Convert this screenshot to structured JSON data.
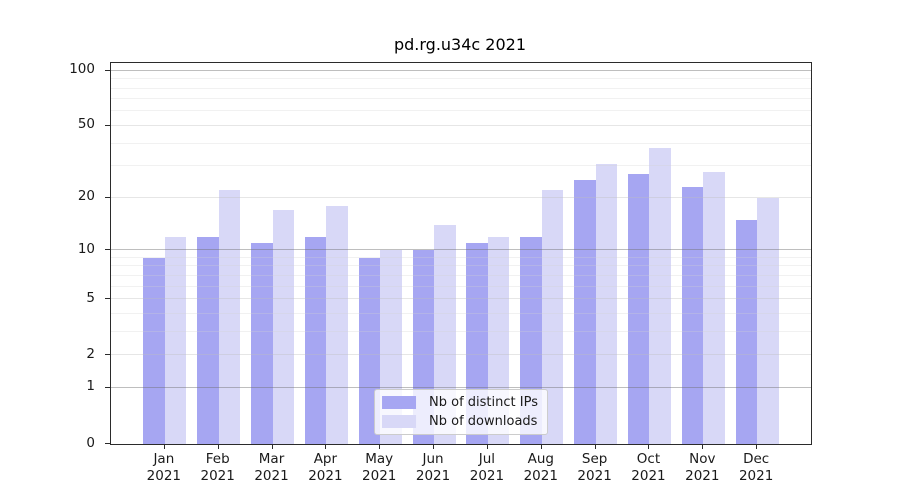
{
  "chart_data": {
    "type": "bar",
    "title": "pd.rg.u34c 2021",
    "xlabel": "",
    "ylabel": "",
    "yscale": "log1p (position proportional to log10(value+1))",
    "ylim": [
      0,
      110
    ],
    "y_ticks": [
      0,
      1,
      2,
      5,
      10,
      20,
      50,
      100
    ],
    "y_minor_gridlines": [
      3,
      4,
      6,
      7,
      8,
      9,
      30,
      40,
      60,
      70,
      80,
      90
    ],
    "grid": true,
    "categories": [
      "Jan",
      "Feb",
      "Mar",
      "Apr",
      "May",
      "Jun",
      "Jul",
      "Aug",
      "Sep",
      "Oct",
      "Nov",
      "Dec"
    ],
    "x_tick_second_line": "2021",
    "series": [
      {
        "name": "Nb of distinct IPs",
        "color": "#a6a6f2",
        "values": [
          9,
          12,
          11,
          12,
          9,
          10,
          11,
          12,
          25,
          27,
          23,
          15
        ]
      },
      {
        "name": "Nb of downloads",
        "color": "#d8d8f7",
        "values": [
          12,
          22,
          17,
          18,
          10,
          14,
          12,
          22,
          31,
          38,
          28,
          20
        ]
      }
    ],
    "legend_position": "lower center"
  }
}
